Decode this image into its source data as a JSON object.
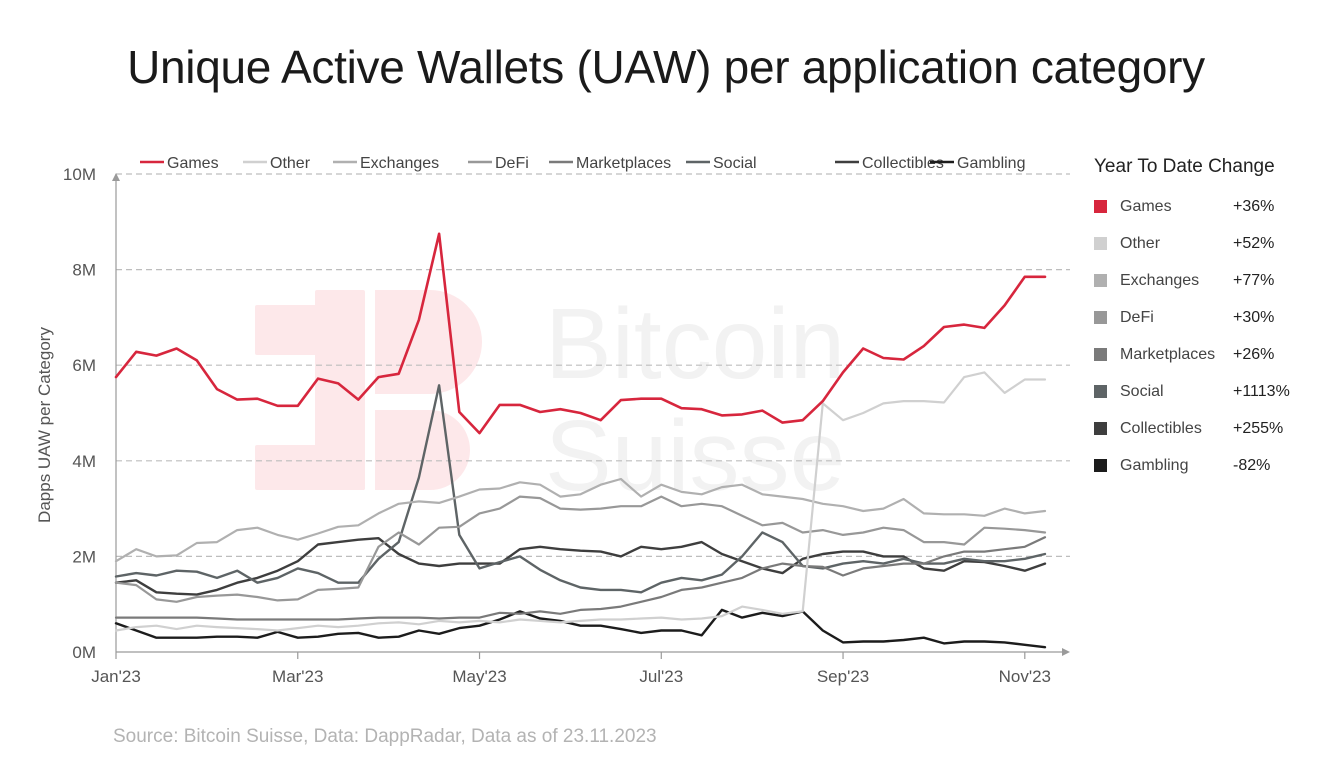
{
  "title": "Unique Active Wallets (UAW) per application category",
  "source": "Source: Bitcoin Suisse, Data: DappRadar, Data as of 23.11.2023",
  "watermark": {
    "line1": "Bitcoin",
    "line2": "Suisse"
  },
  "ytd": {
    "title": "Year To Date Change",
    "items": [
      {
        "label": "Games",
        "value": "+36%",
        "color": "#d7263d"
      },
      {
        "label": "Other",
        "value": "+52%",
        "color": "#d0d0d0"
      },
      {
        "label": "Exchanges",
        "value": "+77%",
        "color": "#b0b0b0"
      },
      {
        "label": "DeFi",
        "value": "+30%",
        "color": "#989898"
      },
      {
        "label": "Marketplaces",
        "value": "+26%",
        "color": "#7a7a7a"
      },
      {
        "label": "Social",
        "value": "+1113%",
        "color": "#5e6466"
      },
      {
        "label": "Collectibles",
        "value": "+255%",
        "color": "#3e3e3e"
      },
      {
        "label": "Gambling",
        "value": "-82%",
        "color": "#1c1c1c"
      }
    ]
  },
  "chart_data": {
    "type": "line",
    "title": "Unique Active Wallets (UAW) per application category",
    "ylabel": "Dapps UAW per Category",
    "xlabel": "",
    "ylim": [
      0,
      10
    ],
    "y_unit": "M",
    "y_ticks": [
      {
        "value": 0,
        "label": "0M"
      },
      {
        "value": 2,
        "label": "2M"
      },
      {
        "value": 4,
        "label": "4M"
      },
      {
        "value": 6,
        "label": "6M"
      },
      {
        "value": 8,
        "label": "8M"
      },
      {
        "value": 10,
        "label": "10M"
      }
    ],
    "x_ticks": [
      {
        "index": 0,
        "label": "Jan'23"
      },
      {
        "index": 9,
        "label": "Mar'23"
      },
      {
        "index": 18,
        "label": "May'23"
      },
      {
        "index": 27,
        "label": "Jul'23"
      },
      {
        "index": 36,
        "label": "Sep'23"
      },
      {
        "index": 45,
        "label": "Nov'23"
      }
    ],
    "x_count": 47,
    "gridlines": [
      2,
      4,
      6,
      8,
      10
    ],
    "legend_position": "top",
    "series": [
      {
        "name": "Games",
        "color": "#d7263d",
        "width": 2.6,
        "values": [
          5.75,
          6.28,
          6.2,
          6.35,
          6.1,
          5.5,
          5.28,
          5.3,
          5.15,
          5.15,
          5.72,
          5.62,
          5.28,
          5.75,
          5.82,
          6.95,
          8.75,
          5.02,
          4.58,
          5.17,
          5.17,
          5.02,
          5.08,
          5.0,
          4.85,
          5.27,
          5.3,
          5.3,
          5.1,
          5.08,
          4.95,
          4.97,
          5.05,
          4.8,
          4.85,
          5.25,
          5.85,
          6.35,
          6.15,
          6.12,
          6.4,
          6.8,
          6.85,
          6.78,
          7.25,
          7.85,
          7.85
        ]
      },
      {
        "name": "Other",
        "color": "#d0d0d0",
        "width": 2.2,
        "values": [
          0.45,
          0.52,
          0.55,
          0.48,
          0.55,
          0.52,
          0.5,
          0.48,
          0.45,
          0.5,
          0.55,
          0.52,
          0.55,
          0.6,
          0.62,
          0.58,
          0.65,
          0.62,
          0.65,
          0.62,
          0.68,
          0.65,
          0.62,
          0.65,
          0.68,
          0.68,
          0.7,
          0.72,
          0.68,
          0.7,
          0.75,
          0.95,
          0.88,
          0.8,
          0.85,
          5.2,
          4.85,
          5.0,
          5.2,
          5.25,
          5.25,
          5.22,
          5.75,
          5.85,
          5.42,
          5.7,
          5.7
        ]
      },
      {
        "name": "Exchanges",
        "color": "#b0b0b0",
        "width": 2.2,
        "values": [
          1.9,
          2.15,
          2.0,
          2.02,
          2.28,
          2.3,
          2.55,
          2.6,
          2.45,
          2.35,
          2.48,
          2.62,
          2.65,
          2.9,
          3.1,
          3.15,
          3.12,
          3.25,
          3.4,
          3.42,
          3.55,
          3.5,
          3.25,
          3.3,
          3.5,
          3.62,
          3.25,
          3.5,
          3.35,
          3.3,
          3.45,
          3.5,
          3.3,
          3.25,
          3.2,
          3.1,
          3.05,
          2.95,
          3.0,
          3.2,
          2.9,
          2.88,
          2.88,
          2.85,
          3.0,
          2.9,
          2.95
        ]
      },
      {
        "name": "DeFi",
        "color": "#989898",
        "width": 2.2,
        "values": [
          1.45,
          1.4,
          1.1,
          1.05,
          1.15,
          1.18,
          1.2,
          1.15,
          1.08,
          1.1,
          1.3,
          1.32,
          1.35,
          2.2,
          2.5,
          2.25,
          2.6,
          2.62,
          2.9,
          3.0,
          3.25,
          3.22,
          3.0,
          2.98,
          3.0,
          3.05,
          3.05,
          3.25,
          3.05,
          3.1,
          3.05,
          2.85,
          2.65,
          2.7,
          2.5,
          2.55,
          2.45,
          2.5,
          2.6,
          2.55,
          2.3,
          2.3,
          2.25,
          2.6,
          2.58,
          2.55,
          2.5
        ]
      },
      {
        "name": "Marketplaces",
        "color": "#7a7a7a",
        "width": 2.2,
        "values": [
          0.72,
          0.72,
          0.72,
          0.72,
          0.72,
          0.7,
          0.68,
          0.68,
          0.68,
          0.68,
          0.68,
          0.68,
          0.7,
          0.72,
          0.72,
          0.72,
          0.7,
          0.72,
          0.72,
          0.82,
          0.8,
          0.85,
          0.8,
          0.88,
          0.9,
          0.95,
          1.05,
          1.15,
          1.3,
          1.35,
          1.45,
          1.55,
          1.75,
          1.85,
          1.8,
          1.78,
          1.6,
          1.75,
          1.8,
          1.85,
          1.85,
          2.0,
          2.1,
          2.1,
          2.15,
          2.2,
          2.4
        ]
      },
      {
        "name": "Social",
        "color": "#5e6466",
        "width": 2.4,
        "values": [
          1.58,
          1.65,
          1.6,
          1.7,
          1.68,
          1.55,
          1.7,
          1.45,
          1.55,
          1.75,
          1.65,
          1.45,
          1.45,
          1.95,
          2.3,
          3.65,
          5.58,
          2.45,
          1.75,
          1.88,
          2.0,
          1.72,
          1.5,
          1.35,
          1.3,
          1.3,
          1.25,
          1.45,
          1.55,
          1.5,
          1.62,
          2.0,
          2.5,
          2.3,
          1.8,
          1.75,
          1.85,
          1.9,
          1.85,
          1.95,
          1.85,
          1.85,
          1.95,
          1.9,
          1.9,
          1.95,
          2.05
        ]
      },
      {
        "name": "Collectibles",
        "color": "#3e3e3e",
        "width": 2.4,
        "values": [
          1.45,
          1.5,
          1.25,
          1.22,
          1.2,
          1.3,
          1.45,
          1.55,
          1.7,
          1.9,
          2.25,
          2.3,
          2.35,
          2.38,
          2.05,
          1.85,
          1.8,
          1.85,
          1.85,
          1.85,
          2.15,
          2.2,
          2.15,
          2.12,
          2.1,
          2.0,
          2.2,
          2.15,
          2.2,
          2.3,
          2.05,
          1.9,
          1.75,
          1.65,
          1.95,
          2.05,
          2.1,
          2.1,
          2.0,
          2.0,
          1.75,
          1.7,
          1.9,
          1.88,
          1.8,
          1.7,
          1.85
        ]
      },
      {
        "name": "Gambling",
        "color": "#1c1c1c",
        "width": 2.4,
        "values": [
          0.6,
          0.45,
          0.3,
          0.3,
          0.3,
          0.32,
          0.32,
          0.3,
          0.42,
          0.3,
          0.32,
          0.38,
          0.4,
          0.3,
          0.32,
          0.45,
          0.38,
          0.5,
          0.55,
          0.68,
          0.85,
          0.7,
          0.65,
          0.55,
          0.55,
          0.48,
          0.4,
          0.45,
          0.45,
          0.35,
          0.88,
          0.72,
          0.82,
          0.75,
          0.85,
          0.45,
          0.2,
          0.22,
          0.22,
          0.25,
          0.3,
          0.18,
          0.22,
          0.22,
          0.2,
          0.15,
          0.1
        ]
      }
    ]
  }
}
